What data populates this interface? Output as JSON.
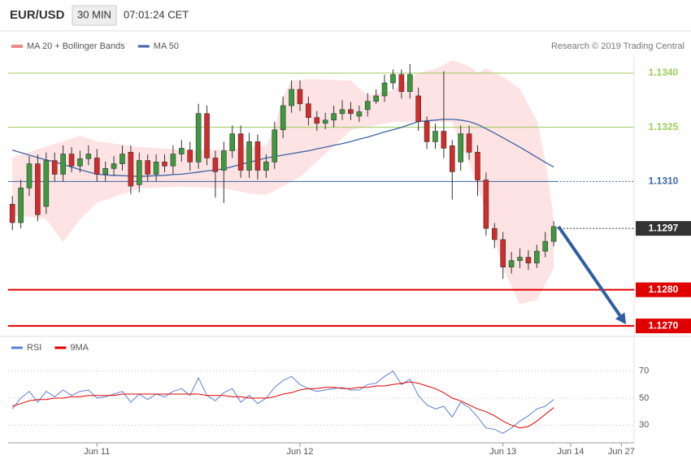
{
  "chart_data": [
    {
      "type": "candlestick",
      "title": "EUR/USD",
      "interval": "30 MIN",
      "timestamp": "07:01:24 CET",
      "credit": "Research © 2019 Trading Central",
      "bull_color": "#3c9a3c",
      "bear_color": "#d42a2a",
      "open": [
        1.13037,
        1.12986,
        1.13082,
        1.13149,
        1.13031,
        1.13158,
        1.1312,
        1.13176,
        1.13143,
        1.13163,
        1.13165,
        1.1312,
        1.13136,
        1.13149,
        1.13181,
        1.13091,
        1.13158,
        1.1312,
        1.13154,
        1.13143,
        1.13176,
        1.13187,
        1.13154,
        1.13288,
        1.13165,
        1.13131,
        1.13185,
        1.13232,
        1.13131,
        1.1321,
        1.13131,
        1.13154,
        1.13243,
        1.1331,
        1.13355,
        1.13315,
        1.13277,
        1.13261,
        1.1327,
        1.13288,
        1.13299,
        1.13281,
        1.13299,
        1.13322,
        1.13337,
        1.13373,
        1.13396,
        1.13349,
        1.13337,
        1.13266,
        1.1321,
        1.13239,
        1.13199,
        1.13154,
        1.13232,
        1.13181,
        1.13104,
        1.1297,
        1.12939,
        1.12863,
        1.12881,
        1.1289,
        1.12874,
        1.12907,
        1.12934,
        null,
        null,
        null,
        null,
        null,
        null,
        null,
        null,
        null
      ],
      "high": [
        1.1306,
        1.13105,
        1.1317,
        1.13175,
        1.1318,
        1.1318,
        1.132,
        1.13195,
        1.13185,
        1.132,
        1.1319,
        1.13155,
        1.1317,
        1.132,
        1.132,
        1.1318,
        1.13175,
        1.13175,
        1.13175,
        1.132,
        1.13215,
        1.1321,
        1.13315,
        1.1331,
        1.13185,
        1.1321,
        1.13255,
        1.13255,
        1.13235,
        1.1323,
        1.13175,
        1.13265,
        1.13335,
        1.1338,
        1.1338,
        1.13335,
        1.13295,
        1.1329,
        1.1331,
        1.13325,
        1.1332,
        1.1331,
        1.13345,
        1.13355,
        1.13395,
        1.1341,
        1.1341,
        1.13425,
        1.1336,
        1.1328,
        1.1326,
        1.13405,
        1.13215,
        1.13255,
        1.13255,
        1.132,
        1.13125,
        1.12985,
        1.1296,
        1.12905,
        1.12915,
        1.1291,
        1.12925,
        1.1296,
        1.1299,
        null,
        null,
        null,
        null,
        null,
        null,
        null,
        null,
        null
      ],
      "low": [
        1.12965,
        1.1297,
        1.1306,
        1.1299,
        1.1301,
        1.131,
        1.131,
        1.13125,
        1.13125,
        1.13145,
        1.131,
        1.131,
        1.13115,
        1.1313,
        1.13065,
        1.1307,
        1.131,
        1.131,
        1.13125,
        1.1312,
        1.13155,
        1.1313,
        1.13135,
        1.13145,
        1.13055,
        1.1304,
        1.13165,
        1.1311,
        1.1311,
        1.13105,
        1.1311,
        1.13135,
        1.1322,
        1.1329,
        1.13295,
        1.13255,
        1.1324,
        1.13245,
        1.1325,
        1.1327,
        1.1327,
        1.13265,
        1.1328,
        1.13315,
        1.1332,
        1.13355,
        1.1333,
        1.1333,
        1.1324,
        1.1319,
        1.1319,
        1.13165,
        1.1305,
        1.1313,
        1.1316,
        1.1306,
        1.1295,
        1.12915,
        1.1283,
        1.12845,
        1.1286,
        1.12855,
        1.1286,
        1.1289,
        1.1292,
        null,
        null,
        null,
        null,
        null,
        null,
        null,
        null,
        null
      ],
      "close": [
        1.12986,
        1.13082,
        1.13149,
        1.13008,
        1.13158,
        1.1312,
        1.13176,
        1.13143,
        1.13163,
        1.13176,
        1.1312,
        1.13136,
        1.13149,
        1.13176,
        1.13087,
        1.13158,
        1.1312,
        1.13154,
        1.13143,
        1.13176,
        1.13192,
        1.13154,
        1.13288,
        1.13165,
        1.13127,
        1.13185,
        1.13232,
        1.13131,
        1.1321,
        1.13131,
        1.13154,
        1.13243,
        1.1331,
        1.13355,
        1.13315,
        1.13277,
        1.13261,
        1.1327,
        1.13288,
        1.13299,
        1.13288,
        1.13293,
        1.13322,
        1.13337,
        1.13373,
        1.13396,
        1.13349,
        1.13396,
        1.13266,
        1.1321,
        1.13239,
        1.13192,
        1.13127,
        1.13232,
        1.13181,
        1.13104,
        1.1297,
        1.12939,
        1.12863,
        1.12881,
        1.1289,
        1.12874,
        1.12907,
        1.12934,
        1.12975,
        null,
        null,
        null,
        null,
        null,
        null,
        null,
        null,
        null
      ],
      "bands": {
        "name": "MA 20 + Bollinger Bands",
        "color": "#f08a8a",
        "fill": "#fde3e3",
        "upper": [
          1.13165,
          1.13173,
          1.1318,
          1.13188,
          1.13195,
          1.13203,
          1.1321,
          1.13218,
          1.13225,
          1.13218,
          1.1321,
          1.13207,
          1.13204,
          1.132,
          1.13197,
          1.13194,
          1.13193,
          1.13191,
          1.1319,
          1.13188,
          1.13187,
          1.13187,
          1.13187,
          1.13187,
          1.13187,
          1.13187,
          1.1319,
          1.13192,
          1.13195,
          1.13197,
          1.13199,
          1.13243,
          1.13333,
          1.13378,
          1.1338,
          1.13382,
          1.13382,
          1.13381,
          1.1338,
          1.13379,
          1.13378,
          1.13358,
          1.13337,
          1.13342,
          1.13346,
          1.13351,
          1.13367,
          1.13384,
          1.134,
          1.13405,
          1.13411,
          1.13422,
          1.13434,
          1.13426,
          1.13418,
          1.134,
          1.13411,
          1.134,
          1.13389,
          1.13372,
          1.13355,
          1.1331,
          1.13266,
          1.13154,
          1.12986,
          null,
          null,
          null,
          null,
          null,
          null,
          null,
          null,
          null
        ],
        "lower": [
          1.13008,
          1.13005,
          1.13003,
          1.13,
          1.12997,
          1.12966,
          1.12934,
          1.12966,
          1.12997,
          1.1302,
          1.13042,
          1.1305,
          1.13058,
          1.13066,
          1.13074,
          1.13082,
          1.13083,
          1.13084,
          1.13085,
          1.13086,
          1.13087,
          1.13086,
          1.13085,
          1.13084,
          1.13083,
          1.13082,
          1.13078,
          1.13073,
          1.13068,
          1.13066,
          1.13064,
          1.13076,
          1.13088,
          1.13101,
          1.13113,
          1.13135,
          1.13156,
          1.13178,
          1.13199,
          1.13221,
          1.13243,
          1.13248,
          1.13252,
          1.13257,
          1.13261,
          1.13266,
          1.13266,
          1.13266,
          1.13266,
          1.13266,
          1.13266,
          1.13266,
          1.13266,
          1.1321,
          1.13154,
          1.13087,
          1.13019,
          1.12941,
          1.12863,
          1.12812,
          1.12762,
          1.12768,
          1.12773,
          1.12818,
          1.12863,
          null,
          null,
          null,
          null,
          null,
          null,
          null,
          null,
          null
        ]
      },
      "series": [
        {
          "name": "MA 50",
          "color": "#3d64a5",
          "values": [
            1.13187,
            1.1318,
            1.13173,
            1.13166,
            1.1316,
            1.13154,
            1.13147,
            1.1314,
            1.13133,
            1.13126,
            1.1312,
            1.13118,
            1.13117,
            1.13116,
            1.13115,
            1.13114,
            1.13115,
            1.13116,
            1.13117,
            1.13119,
            1.1312,
            1.13123,
            1.13126,
            1.13129,
            1.13132,
            1.13135,
            1.13141,
            1.13147,
            1.13153,
            1.13159,
            1.13165,
            1.13169,
            1.13173,
            1.13177,
            1.13181,
            1.13185,
            1.1319,
            1.13195,
            1.132,
            1.13205,
            1.1321,
            1.13217,
            1.13223,
            1.1323,
            1.13237,
            1.13243,
            1.1325,
            1.13258,
            1.13266,
            1.13268,
            1.1327,
            1.13272,
            1.13272,
            1.1327,
            1.13266,
            1.13258,
            1.13246,
            1.13234,
            1.13221,
            1.13208,
            1.13195,
            1.13181,
            1.13167,
            1.13153,
            1.1314,
            null,
            null,
            null,
            null,
            null,
            null,
            null,
            null,
            null
          ]
        }
      ],
      "levels": [
        {
          "value": 1.134,
          "label": "1.1340",
          "color": "#9ccc5a",
          "label_style": "plain",
          "line": "full",
          "weight": 1
        },
        {
          "value": 1.1325,
          "label": "1.1325",
          "color": "#9ccc5a",
          "label_style": "plain",
          "line": "full",
          "weight": 1
        },
        {
          "value": 1.131,
          "label": "1.1310",
          "color": "#3d64a5",
          "label_style": "plain",
          "line": "to-last",
          "weight": 1
        },
        {
          "value": 1.1297,
          "label": "1.1297",
          "color": "#333333",
          "label_style": "boxed",
          "line": "from-last",
          "weight": 1
        },
        {
          "value": 1.128,
          "label": "1.1280",
          "color": "#e00000",
          "label_style": "boxed",
          "line": "full",
          "weight": 2
        },
        {
          "value": 1.127,
          "label": "1.1270",
          "color": "#e00000",
          "label_style": "boxed",
          "line": "full",
          "weight": 2
        }
      ],
      "arrow_color": "#2f5fa0",
      "ylim": [
        1.1268,
        1.13445
      ]
    },
    {
      "type": "line",
      "categories": [
        null,
        null,
        null,
        null,
        null,
        null,
        null,
        null,
        null,
        null,
        "Jun 11",
        null,
        null,
        null,
        null,
        null,
        null,
        null,
        null,
        null,
        null,
        null,
        null,
        null,
        null,
        null,
        null,
        null,
        null,
        null,
        null,
        null,
        null,
        null,
        "Jun 12",
        null,
        null,
        null,
        null,
        null,
        null,
        null,
        null,
        null,
        null,
        null,
        null,
        null,
        null,
        null,
        null,
        null,
        null,
        null,
        null,
        null,
        null,
        null,
        "Jun 13",
        null,
        null,
        null,
        null,
        null,
        null,
        null,
        "Jun 14",
        null,
        null,
        null,
        null,
        null,
        "Jun 27",
        null
      ],
      "series": [
        {
          "name": "RSI",
          "color": "#5b7fd6",
          "values": [
            42,
            50,
            55,
            47,
            55,
            51,
            56,
            52,
            55,
            56,
            50,
            51,
            53,
            55,
            47,
            53,
            49,
            53,
            51,
            55,
            57,
            52,
            65,
            52,
            48,
            54,
            57,
            47,
            52,
            46,
            50,
            58,
            63,
            66,
            60,
            57,
            55,
            56,
            57,
            58,
            56,
            56,
            60,
            61,
            66,
            70,
            60,
            64,
            52,
            45,
            42,
            44,
            36,
            47,
            43,
            36,
            28,
            27,
            24,
            28,
            33,
            37,
            42,
            44,
            49,
            null,
            null,
            null,
            null,
            null,
            null,
            null,
            null,
            null
          ]
        },
        {
          "name": "9MA",
          "color": "#e00000",
          "values": [
            44,
            46,
            48,
            49,
            49,
            50,
            50,
            51,
            51,
            52,
            52,
            52,
            52,
            53,
            53,
            53,
            53,
            53,
            53,
            53,
            53,
            53,
            53,
            52,
            52,
            52,
            51,
            51,
            50,
            50,
            50,
            51,
            53,
            54,
            56,
            57,
            57,
            58,
            58,
            57,
            57,
            58,
            58,
            59,
            59,
            60,
            61,
            62,
            61,
            59,
            57,
            54,
            50,
            48,
            45,
            42,
            40,
            37,
            33,
            30,
            28,
            29,
            33,
            38,
            43,
            null,
            null,
            null,
            null,
            null,
            null,
            null,
            null,
            null
          ]
        }
      ],
      "ylim": [
        20,
        80
      ],
      "yticks": [
        30,
        50,
        70
      ],
      "grid": "dotted"
    }
  ]
}
